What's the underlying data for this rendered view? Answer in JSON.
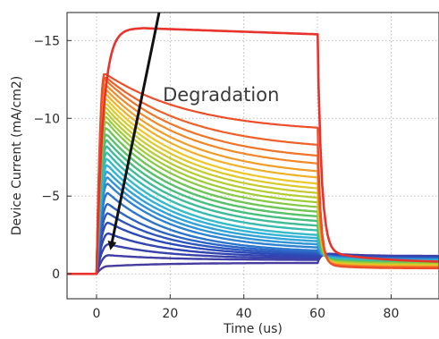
{
  "chart_data": {
    "type": "line",
    "title": "",
    "xlabel": "Time (us)",
    "ylabel": "Device Current (mA/cm2)",
    "xlim": [
      -8,
      93
    ],
    "ylim": [
      1.6,
      -16.8
    ],
    "y_axis_inverted": true,
    "grid": true,
    "legend": "none",
    "x_ticks": [
      0,
      20,
      40,
      60,
      80
    ],
    "x_tick_labels": [
      "0",
      "20",
      "40",
      "60",
      "80"
    ],
    "y_ticks": [
      0,
      -5,
      -10,
      -15
    ],
    "y_tick_labels": [
      "0",
      "−5",
      "−10",
      "−15"
    ],
    "pulse": {
      "start_us": 0,
      "end_us": 60
    },
    "series_count": 30,
    "first_series": {
      "color": "#e8322b",
      "rise_peak": -15.8,
      "plateau_at_60us": -15.4,
      "recovery_floor": -1.5
    },
    "series_peak_currents": [
      -12.9,
      -12.7,
      -12.5,
      -12.2,
      -11.9,
      -11.6,
      -11.3,
      -11.0,
      -10.7,
      -10.4,
      -10.1,
      -9.8,
      -9.4,
      -9.0,
      -8.6,
      -8.2,
      -7.8,
      -7.4,
      -7.0,
      -6.6,
      -6.2,
      -5.8,
      -5.2,
      -4.5,
      -3.9,
      -3.3,
      -2.6,
      -1.9,
      -1.2,
      -0.5
    ],
    "series_currents_at_60us": [
      -9.4,
      -8.3,
      -7.6,
      -7.1,
      -6.6,
      -6.2,
      -5.8,
      -5.5,
      -5.2,
      -4.9,
      -4.6,
      -4.3,
      -4.0,
      -3.7,
      -3.4,
      -3.1,
      -2.8,
      -2.5,
      -2.3,
      -2.1,
      -1.9,
      -1.7,
      -1.5,
      -1.4,
      -1.3,
      -1.2,
      -1.1,
      -1.0,
      -0.9,
      -0.7
    ],
    "annotations": [
      {
        "text": "Degradation",
        "x": 18,
        "y": -11.5
      },
      {
        "arrow_from": [
          17,
          -16.8
        ],
        "arrow_to": [
          4,
          -1.8
        ]
      }
    ]
  }
}
